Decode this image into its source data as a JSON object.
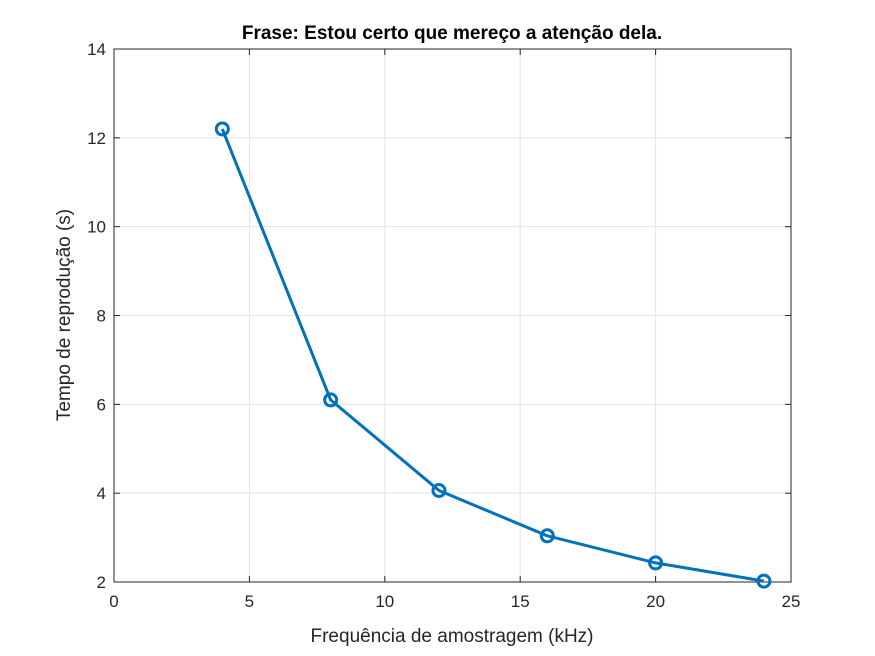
{
  "chart_data": {
    "type": "line",
    "title": "Frase: Estou certo que mereço a atenção dela.",
    "xlabel": "Frequência de amostragem (kHz)",
    "ylabel": "Tempo de reprodução (s)",
    "xlim": [
      0,
      25
    ],
    "ylim": [
      2,
      14
    ],
    "xticks": [
      0,
      5,
      10,
      15,
      20,
      25
    ],
    "yticks": [
      2,
      4,
      6,
      8,
      10,
      12,
      14
    ],
    "grid": true,
    "marker": "circle",
    "series": [
      {
        "color": "#0072BD",
        "x": [
          4,
          8,
          12,
          16,
          20,
          24
        ],
        "y": [
          12.2,
          6.1,
          4.06,
          3.04,
          2.43,
          2.02
        ]
      }
    ]
  }
}
